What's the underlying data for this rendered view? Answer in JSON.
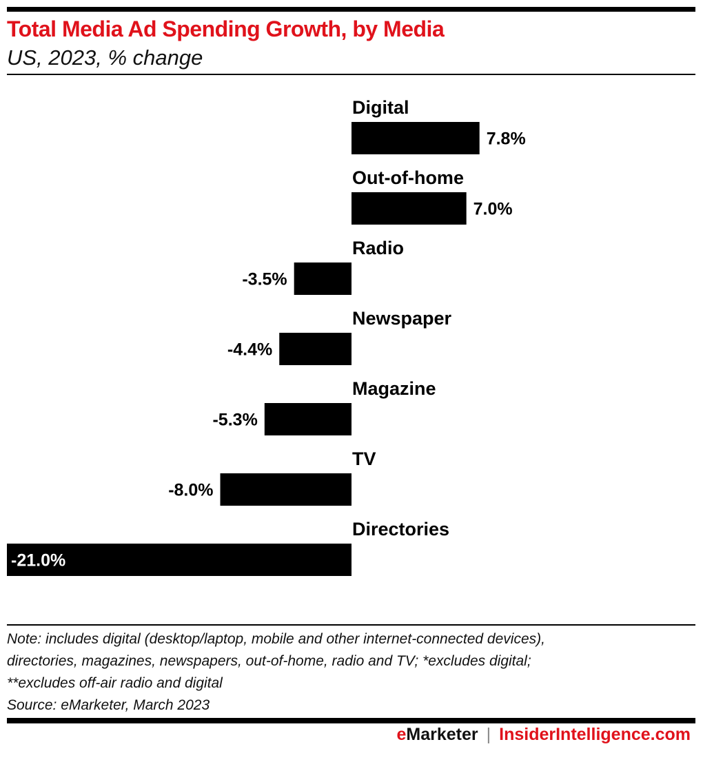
{
  "title": "Total Media Ad Spending Growth, by Media",
  "subtitle": "US, 2023, % change",
  "chart_data": {
    "type": "bar",
    "orientation": "horizontal",
    "title": "Total Media Ad Spending Growth, by Media",
    "subtitle": "US, 2023, % change",
    "categories": [
      "Digital",
      "Out-of-home",
      "Radio",
      "Newspaper",
      "Magazine",
      "TV",
      "Directories"
    ],
    "values": [
      7.8,
      7.0,
      -3.5,
      -4.4,
      -5.3,
      -8.0,
      -21.0
    ],
    "labels": [
      "7.8%",
      "7.0%",
      "-3.5%",
      "-4.4%",
      "-5.3%",
      "-8.0%",
      "-21.0%"
    ],
    "xlim": [
      -21.0,
      7.8
    ],
    "grid": false,
    "bar_color": "#000000"
  },
  "notes": [
    "Note: includes digital (desktop/laptop, mobile and other internet-connected devices),",
    "directories, magazines, newspapers, out-of-home, radio and TV; *excludes digital;",
    "**excludes off-air radio and digital",
    "Source: eMarketer, March 2023"
  ],
  "footer": {
    "brand_e": "e",
    "brand_rest": "Marketer",
    "separator": "|",
    "site": "InsiderIntelligence.com"
  },
  "colors": {
    "accent": "#e0121b",
    "bar": "#000000"
  }
}
